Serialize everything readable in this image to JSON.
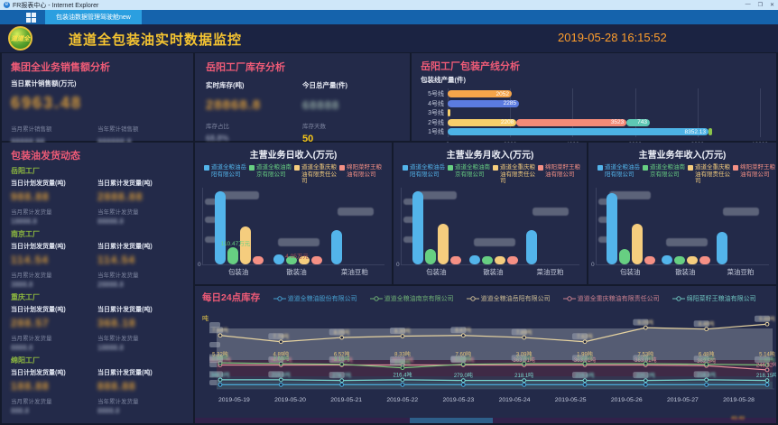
{
  "window": {
    "title": "FR报表中心 - Internet Explorer",
    "tab": "包装油数据管理驾驶舱new",
    "controls": {
      "minimize": "—",
      "maximize": "❐",
      "close": "✕"
    }
  },
  "header": {
    "logo_text": "道道全",
    "title": "道道全包装油实时数据监控",
    "datetime": "2019-05-28 16:15:52"
  },
  "sales_panel": {
    "title": "集团全业务销售额分析",
    "main_label": "当日累计销售额(万元)",
    "main_value": "6963.48",
    "main_censored": true,
    "subs": [
      {
        "label": "当月累计销售额",
        "value": "88888.88",
        "censored": true
      },
      {
        "label": "当年累计销售额",
        "value": "888888.8",
        "censored": true
      }
    ]
  },
  "inventory_panel": {
    "title": "岳阳工厂库存分析",
    "stats": [
      {
        "label": "实时库存(吨)",
        "value": "28868.8",
        "censored": true
      },
      {
        "label": "今日总产量(件)",
        "value": "68888",
        "censored": true
      }
    ],
    "subs": [
      {
        "label": "库存占比",
        "value": "68.8%",
        "censored": true
      },
      {
        "label": "库存天数",
        "value": "50",
        "censored": false
      }
    ]
  },
  "shipping_panel": {
    "title": "包装油发货动态",
    "labels": {
      "plan": "当日计划发货量(吨)",
      "day_total": "当日累计发货量(吨)",
      "month": "当月累计发货量",
      "year": "当年累计发货量"
    },
    "factories": [
      {
        "name": "岳阳工厂",
        "plan": "988.88",
        "day": "2888.88",
        "month": "18888.8",
        "year": "88888.8",
        "censored": true
      },
      {
        "name": "南京工厂",
        "plan": "114.54",
        "day": "114.54",
        "month": "3888.8",
        "year": "28888.8",
        "censored": true
      },
      {
        "name": "重庆工厂",
        "plan": "288.57",
        "day": "368.18",
        "month": "8888.8",
        "year": "18888.8",
        "censored": true
      },
      {
        "name": "绵阳工厂",
        "plan": "188.88",
        "day": "888.88",
        "month": "888.8",
        "year": "8888.8",
        "censored": true
      }
    ]
  },
  "chart_data": [
    {
      "id": "prodline",
      "type": "bar",
      "orientation": "horizontal",
      "title": "岳阳工厂包装产线分析",
      "subtitle": "包装线产量(件)",
      "xlim": [
        0,
        10000
      ],
      "ticks": [
        "0",
        "2000",
        "4000",
        "6000",
        "8000",
        "10000"
      ],
      "bars": [
        {
          "category": "5号线",
          "segments": [
            {
              "value": 2052,
              "color": "#f5a54a",
              "label": "2052"
            }
          ]
        },
        {
          "category": "4号线",
          "segments": [
            {
              "value": 2285,
              "color": "#5b7be0",
              "label": "2285"
            }
          ]
        },
        {
          "category": "3号线",
          "segments": [
            {
              "value": 45,
              "color": "#f7cf6b",
              "label": ""
            }
          ]
        },
        {
          "category": "2号线",
          "segments": [
            {
              "value": 2208,
              "color": "#f7cf6b",
              "label": "2208"
            },
            {
              "value": 3523,
              "color": "#f58b78",
              "label": "3523"
            },
            {
              "value": 743,
              "color": "#5ec8b4",
              "label": "743"
            }
          ]
        },
        {
          "category": "1号线",
          "segments": [
            {
              "value": 8352,
              "color": "#4db3e6",
              "label": "8352.13"
            },
            {
              "value": 130,
              "color": "#8bc34a",
              "label": ""
            }
          ]
        }
      ]
    },
    {
      "id": "income_day",
      "type": "bar",
      "title": "主营业务日收入(万元)",
      "categories": [
        "包装油",
        "散装油",
        "菜油豆粕"
      ],
      "ymax": 320,
      "values_censored": true,
      "legend": [
        {
          "name": "道道全粮油岳阳有限公司",
          "color": "#53b4ea"
        },
        {
          "name": "道道全粮油南京有限公司",
          "color": "#67cf82"
        },
        {
          "name": "道道全重庆粮油有限责任公司",
          "color": "#f5cd7e"
        },
        {
          "name": "绵阳菜籽王粮油有限公司",
          "color": "#f59085"
        }
      ],
      "series": [
        {
          "name": "道道全粮油岳阳有限公司",
          "color": "#53b4ea",
          "values": [
            300,
            38,
            140
          ]
        },
        {
          "name": "道道全粮油南京有限公司",
          "color": "#67cf82",
          "values": [
            70,
            16,
            0
          ]
        },
        {
          "name": "道道全重庆粮油有限责任公司",
          "color": "#f5cd7e",
          "values": [
            155,
            22,
            0
          ]
        },
        {
          "name": "绵阳菜籽王粮油有限公司",
          "color": "#f59085",
          "values": [
            25,
            12,
            0
          ]
        }
      ],
      "visible_fragments": [
        {
          "text": "110.47万元",
          "color": "#67cf82",
          "x": 36,
          "y": 56
        },
        {
          "text": "4.05万元",
          "color": "#b05858",
          "x": 104,
          "y": 70
        }
      ]
    },
    {
      "id": "income_month",
      "type": "bar",
      "title": "主营业务月收入(万元)",
      "categories": [
        "包装油",
        "散装油",
        "菜油豆粕"
      ],
      "ymax": 9600,
      "values_censored": true,
      "legend": [
        {
          "name": "道道全粮油岳阳有限公司",
          "color": "#53b4ea"
        },
        {
          "name": "道道全粮油南京有限公司",
          "color": "#67cf82"
        },
        {
          "name": "道道全重庆粮油有限责任公司",
          "color": "#f5cd7e"
        },
        {
          "name": "绵阳菜籽王粮油有限公司",
          "color": "#f59085"
        }
      ],
      "series": [
        {
          "name": "道道全粮油岳阳有限公司",
          "color": "#53b4ea",
          "values": [
            9000,
            1100,
            4200
          ]
        },
        {
          "name": "道道全粮油南京有限公司",
          "color": "#67cf82",
          "values": [
            1800,
            480,
            0
          ]
        },
        {
          "name": "道道全重庆粮油有限责任公司",
          "color": "#f5cd7e",
          "values": [
            5000,
            650,
            0
          ]
        },
        {
          "name": "绵阳菜籽王粮油有限公司",
          "color": "#f59085",
          "values": [
            750,
            380,
            0
          ]
        }
      ],
      "visible_fragments": []
    },
    {
      "id": "income_year",
      "type": "bar",
      "title": "主营业务年收入(万元)",
      "categories": [
        "包装油",
        "散装油",
        "菜油豆粕"
      ],
      "ymax": 115000,
      "values_censored": true,
      "legend": [
        {
          "name": "道道全粮油岳阳有限公司",
          "color": "#53b4ea"
        },
        {
          "name": "道道全粮油南京有限公司",
          "color": "#67cf82"
        },
        {
          "name": "道道全重庆粮油有限责任公司",
          "color": "#f5cd7e"
        },
        {
          "name": "绵阳菜籽王粮油有限公司",
          "color": "#f59085"
        }
      ],
      "series": [
        {
          "name": "道道全粮油岳阳有限公司",
          "color": "#53b4ea",
          "values": [
            105000,
            13000,
            48000
          ]
        },
        {
          "name": "道道全粮油南京有限公司",
          "color": "#67cf82",
          "values": [
            22000,
            5500,
            0
          ]
        },
        {
          "name": "道道全重庆粮油有限责任公司",
          "color": "#f5cd7e",
          "values": [
            60000,
            8000,
            0
          ]
        },
        {
          "name": "绵阳菜籽王粮油有限公司",
          "color": "#f59085",
          "values": [
            9000,
            4500,
            0
          ]
        }
      ],
      "visible_fragments": []
    },
    {
      "id": "daily_inventory",
      "type": "line",
      "title": "每日24点库存",
      "ylabel": "吨",
      "x": [
        "2019-05-19",
        "2019-05-20",
        "2019-05-21",
        "2019-05-22",
        "2019-05-23",
        "2019-05-24",
        "2019-05-25",
        "2019-05-26",
        "2019-05-27",
        "2019-05-28"
      ],
      "legend": [
        {
          "name": "道道全粮油股份有限公司",
          "color": "#4db3e6"
        },
        {
          "name": "道道全粮油南京有限公司",
          "color": "#7cc87c"
        },
        {
          "name": "道道全粮油岳阳有限公司",
          "color": "#e6d3a0"
        },
        {
          "name": "道道全重庆粮油有限责任公司",
          "color": "#e8909c"
        },
        {
          "name": "绵阳菜籽王粮油有限公司",
          "color": "#7adcd2"
        }
      ],
      "series": [
        {
          "name": "道道全粮油岳阳有限公司",
          "color": "#e6d3a0",
          "y_frac": [
            0.76,
            0.67,
            0.73,
            0.75,
            0.76,
            0.73,
            0.67,
            0.87,
            0.85,
            0.92
          ],
          "labels": [
            "7.84吨",
            "7.78吨",
            "8.05吨",
            "8.30吨",
            "8.67吨",
            "7.89吨",
            "7.62吨",
            "9.05吨",
            "8.46吨",
            "9.88吨"
          ],
          "censored": [
            true,
            true,
            true,
            true,
            true,
            true,
            true,
            true,
            true,
            true
          ]
        },
        {
          "name": "道道全重庆粮油有限责任公司",
          "color": "#e8909c",
          "y_frac": [
            0.34,
            0.34,
            0.34,
            0.34,
            0.34,
            0.34,
            0.34,
            0.34,
            0.33,
            0.27
          ],
          "labels": [
            "363.01吨",
            "363.01吨",
            "363.01吨",
            "363.01吨",
            "363.01吨",
            "363.01吨",
            "363.01吨",
            "363.01吨",
            "362.5吨",
            "246.82吨"
          ],
          "censored": [
            true,
            true,
            true,
            true,
            true,
            false,
            false,
            false,
            false,
            false
          ]
        },
        {
          "name": "道道全粮油南京有限公司",
          "color": "#7cc87c",
          "y_frac": [
            0.37,
            0.36,
            0.35,
            0.3,
            0.35,
            0.36,
            0.36,
            0.36,
            0.35,
            0.34
          ],
          "labels": [
            "2.88吨",
            "2.60吨",
            "3.10吨",
            "2.95吨",
            "2.80吨",
            "2.70吨",
            "2.60吨",
            "2.70吨",
            "2.80吨",
            "2.90吨"
          ],
          "censored": [
            true,
            false,
            false,
            true,
            true,
            true,
            true,
            true,
            true,
            true
          ]
        },
        {
          "name": "绵阳菜籽王粮油有限公司",
          "color": "#7adcd2",
          "y_frac": [
            0.13,
            0.13,
            0.12,
            0.13,
            0.12,
            0.12,
            0.12,
            0.12,
            0.13,
            0.12
          ],
          "labels": [
            "348.8吨",
            "219.6吨",
            "278.7吨",
            "216.4吨",
            "279.0吨",
            "218.1吨",
            "219.4吨",
            "220.2吨",
            "218.4吨",
            "218.15吨"
          ],
          "censored": [
            true,
            true,
            true,
            false,
            false,
            false,
            true,
            true,
            true,
            false
          ]
        },
        {
          "name": "道道全粮油股份有限公司",
          "color": "#4db3e6",
          "y_frac": [
            0.06,
            0.06,
            0.06,
            0.06,
            0.06,
            0.06,
            0.06,
            0.06,
            0.06,
            0.06
          ],
          "labels": [
            "",
            "",
            "",
            "",
            "",
            "",
            "",
            "",
            "",
            ""
          ],
          "censored": [
            true,
            true,
            true,
            true,
            true,
            true,
            true,
            true,
            true,
            true
          ]
        }
      ],
      "extra_labels": {
        "color": "#e8c87a",
        "y_frac": 0.47,
        "texts": [
          "5.32吨",
          "4.89吨",
          "6.52吨",
          "8.33吨",
          "7.60吨",
          "3.09吨",
          "1.99吨",
          "7.53吨",
          "6.48吨",
          "5.14吨"
        ]
      }
    }
  ]
}
